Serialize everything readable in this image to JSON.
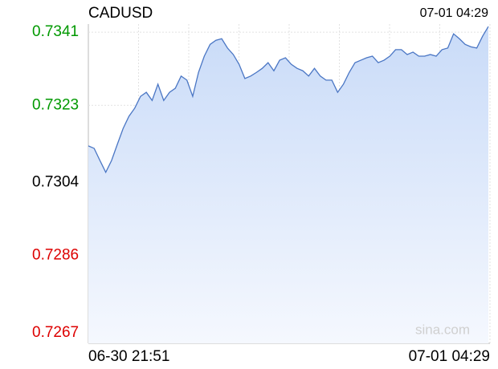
{
  "chart_data": {
    "type": "line",
    "title": "CADUSD",
    "header_time": "07-01 04:29",
    "watermark": "sina.com",
    "categories": [
      "06-30 21:51",
      null,
      null,
      null,
      null,
      null,
      null,
      null,
      null,
      null,
      null,
      null,
      null,
      null,
      null,
      null,
      null,
      null,
      null,
      null,
      null,
      null,
      null,
      null,
      null,
      null,
      null,
      null,
      null,
      null,
      null,
      null,
      null,
      null,
      null,
      null,
      null,
      null,
      null,
      null,
      null,
      null,
      null,
      null,
      null,
      null,
      null,
      null,
      null,
      null,
      null,
      null,
      null,
      null,
      null,
      null,
      null,
      null,
      null,
      null,
      null,
      null,
      null,
      null,
      null,
      null,
      null,
      null,
      null,
      "07-01 04:29"
    ],
    "series": [
      {
        "color": "#4a76c4",
        "values": [
          0.7313,
          0.73124,
          0.73094,
          0.73065,
          0.73094,
          0.73134,
          0.73173,
          0.73203,
          0.73223,
          0.73252,
          0.73262,
          0.73242,
          0.73282,
          0.73242,
          0.73262,
          0.73272,
          0.73302,
          0.73292,
          0.73252,
          0.73311,
          0.73351,
          0.7338,
          0.7339,
          0.73394,
          0.73371,
          0.73355,
          0.73331,
          0.73296,
          0.73302,
          0.73311,
          0.73321,
          0.73335,
          0.73315,
          0.73341,
          0.73347,
          0.73331,
          0.73321,
          0.73315,
          0.73302,
          0.73321,
          0.73302,
          0.73292,
          0.73292,
          0.73262,
          0.73282,
          0.73311,
          0.73335,
          0.73341,
          0.73347,
          0.73351,
          0.73335,
          0.73341,
          0.73351,
          0.73367,
          0.73367,
          0.73355,
          0.73361,
          0.73351,
          0.73351,
          0.73355,
          0.73351,
          0.73367,
          0.73371,
          0.73406,
          0.73394,
          0.7338,
          0.73374,
          0.73371,
          0.734,
          0.73424
        ]
      }
    ],
    "ylim": [
      0.72644,
      0.7343
    ],
    "yticks": [
      0.7341,
      0.7323,
      0.7304,
      0.7286,
      0.7267
    ],
    "ytick_colors": [
      "#009900",
      "#009900",
      "#000000",
      "#dd0000",
      "#dd0000"
    ],
    "grid": true
  }
}
